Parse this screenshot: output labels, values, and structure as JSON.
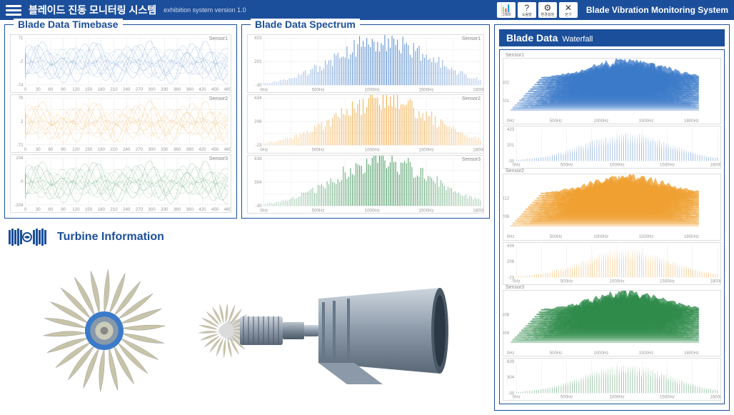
{
  "header": {
    "title_kr": "블레이드 진동 모니터링 시스템",
    "subtitle": "exhibition system version 1.0",
    "title_en": "Blade Vibration Monitoring System",
    "toolbar": [
      {
        "icon": "📊",
        "label": "그래프"
      },
      {
        "icon": "?",
        "label": "도움말"
      },
      {
        "icon": "⚙",
        "label": "환경설정"
      },
      {
        "icon": "✕",
        "label": "닫기"
      }
    ]
  },
  "colors": {
    "brand": "#1C4F9B",
    "sensor1": "#3B7AC9",
    "sensor2": "#F0A030",
    "sensor3": "#2E8B4A",
    "grid": "#e8e8e8",
    "axis": "#999999"
  },
  "timebase": {
    "title": "Blade Data Timebase",
    "x_ticks": [
      0,
      30,
      60,
      90,
      120,
      150,
      180,
      210,
      240,
      270,
      300,
      330,
      360,
      390,
      420,
      450,
      480
    ],
    "sensors": [
      {
        "name": "Sensor1",
        "color": "#3B7AC9",
        "ylim": [
          -74,
          71
        ],
        "yticks": [
          -74,
          -2,
          71
        ],
        "amplitude": 35,
        "baseline": 0
      },
      {
        "name": "Sensor2",
        "color": "#F0A030",
        "ylim": [
          -72,
          76
        ],
        "yticks": [
          -72,
          2,
          76
        ],
        "amplitude": 35,
        "baseline": 0
      },
      {
        "name": "Sensor3",
        "color": "#2E8B4A",
        "ylim": [
          -104,
          104
        ],
        "yticks": [
          -104,
          0,
          104
        ],
        "amplitude": 48,
        "baseline": 0
      }
    ]
  },
  "spectrum": {
    "title": "Blade Data Spectrum",
    "x_ticks": [
      "0Hz",
      "500Hz",
      "1000Hz",
      "1500Hz",
      "1800Hz"
    ],
    "sensors": [
      {
        "name": "Sensor1",
        "color": "#3B7AC9",
        "ylim": [
          -30,
          423
        ],
        "yticks": [
          -30,
          201,
          423
        ]
      },
      {
        "name": "Sensor2",
        "color": "#F0A030",
        "ylim": [
          -23,
          434
        ],
        "yticks": [
          -23,
          206,
          434
        ]
      },
      {
        "name": "Sensor3",
        "color": "#2E8B4A",
        "ylim": [
          -30,
          639
        ],
        "yticks": [
          -30,
          304,
          639
        ]
      }
    ]
  },
  "turbine": {
    "title": "Turbine Information"
  },
  "waterfall": {
    "title": "Blade Data",
    "subtitle": "Waterfall",
    "x_ticks": [
      "0Hz",
      "500Hz",
      "1000Hz",
      "1500Hz",
      "1800Hz"
    ],
    "sensors": [
      {
        "name": "Sensor1",
        "color": "#3B7AC9",
        "y3d": [
          201,
          402
        ],
        "y2d": [
          -30,
          201,
          423
        ]
      },
      {
        "name": "Sensor2",
        "color": "#F0A030",
        "y3d": [
          206,
          412
        ],
        "y2d": [
          -23,
          206,
          434
        ]
      },
      {
        "name": "Sensor3",
        "color": "#2E8B4A",
        "y3d": [
          304,
          608
        ],
        "y2d": [
          -30,
          304,
          639
        ]
      }
    ]
  }
}
